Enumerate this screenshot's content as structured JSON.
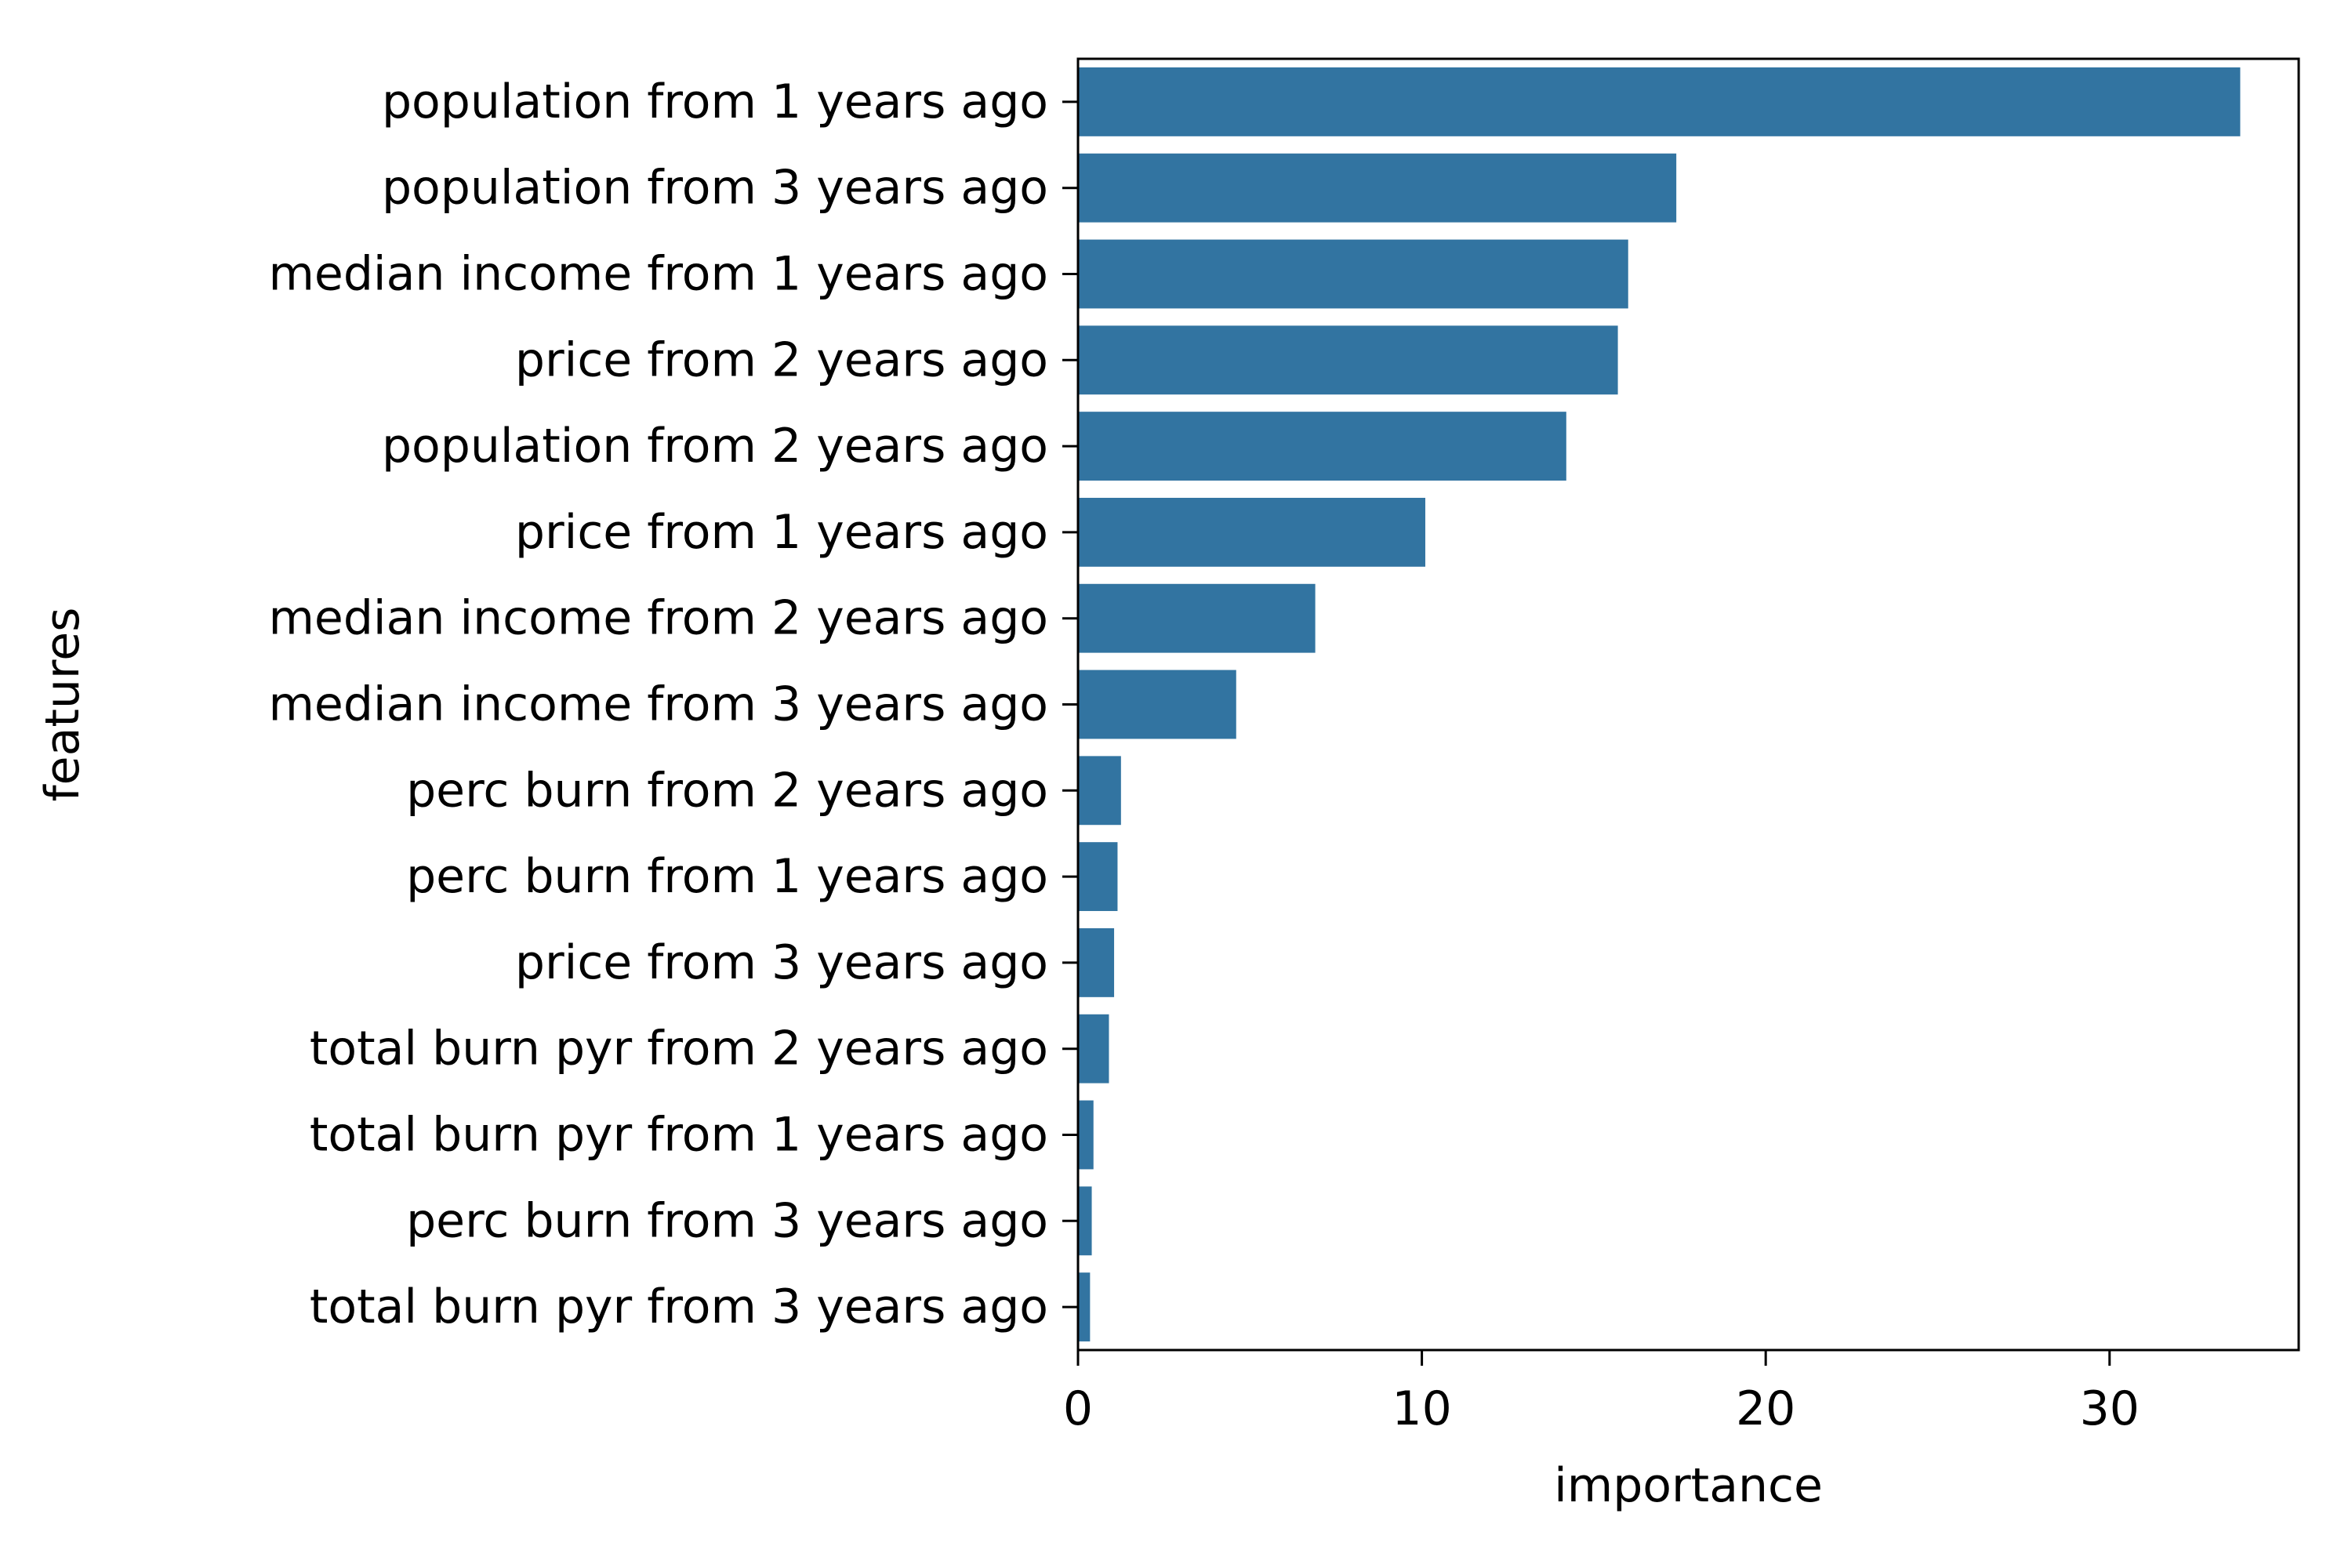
{
  "chart_data": {
    "type": "bar",
    "orientation": "horizontal",
    "xlabel": "importance",
    "ylabel": "features",
    "xlim": [
      0,
      35.5
    ],
    "xticks": [
      0,
      10,
      20,
      30
    ],
    "grid": false,
    "bar_color": "#3274a1",
    "categories": [
      "population from 1 years ago",
      "population from 3 years ago",
      "median income from 1 years ago",
      "price from 2 years ago",
      "population from 2 years ago",
      "price from 1 years ago",
      "median income from 2 years ago",
      "median income from 3 years ago",
      "perc burn from 2 years ago",
      "perc burn from 1 years ago",
      "price from 3 years ago",
      "total burn pyr from 2 years ago",
      "total burn pyr from 1 years ago",
      "perc burn from 3 years ago",
      "total burn pyr from 3 years ago"
    ],
    "values": [
      33.8,
      17.4,
      16.0,
      15.7,
      14.2,
      10.1,
      6.9,
      4.6,
      1.25,
      1.15,
      1.05,
      0.9,
      0.45,
      0.4,
      0.35
    ]
  }
}
